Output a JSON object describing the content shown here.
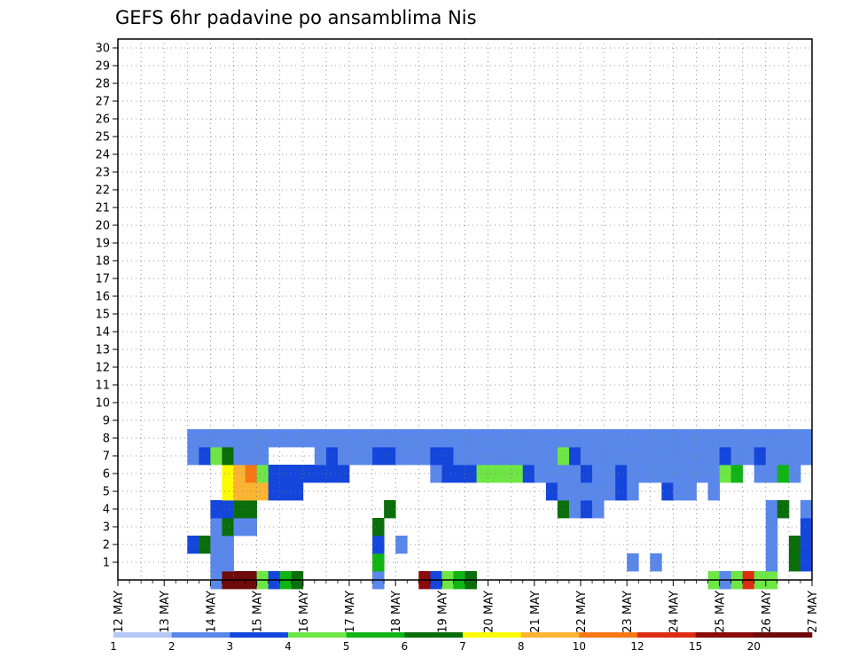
{
  "chart_data": {
    "type": "heatmap",
    "title": "GEFS 6hr padavine po ansamblima Nis",
    "xlabel": "",
    "ylabel": "",
    "x_ticks": [
      "12 MAY",
      "13 MAY",
      "14 MAY",
      "15 MAY",
      "16 MAY",
      "17 MAY",
      "18 MAY",
      "19 MAY",
      "20 MAY",
      "21 MAY",
      "22 MAY",
      "23 MAY",
      "24 MAY",
      "25 MAY",
      "26 MAY",
      "27 MAY"
    ],
    "y_ticks": [
      1,
      2,
      3,
      4,
      5,
      6,
      7,
      8,
      9,
      10,
      11,
      12,
      13,
      14,
      15,
      16,
      17,
      18,
      19,
      20,
      21,
      22,
      23,
      24,
      25,
      26,
      27,
      28,
      29,
      30
    ],
    "ylim": [
      0,
      30
    ],
    "grid": true,
    "x_resolution": "6hr",
    "n_steps": 60,
    "colorbar": {
      "tick_labels": [
        "1",
        "2",
        "3",
        "4",
        "5",
        "6",
        "7",
        "8",
        "10",
        "12",
        "15",
        "20"
      ],
      "colors": [
        "#b4c8f5",
        "#5a87ea",
        "#1446dc",
        "#6ee646",
        "#10b414",
        "#0a6e0a",
        "#fafa00",
        "#fbb432",
        "#f57814",
        "#dc2d14",
        "#8c0a0a",
        "#6e0a0a"
      ]
    },
    "cells": [
      [
        8,
        0,
        1
      ],
      [
        9,
        0,
        11
      ],
      [
        10,
        0,
        11
      ],
      [
        11,
        0,
        11
      ],
      [
        12,
        0,
        3
      ],
      [
        13,
        0,
        2
      ],
      [
        14,
        0,
        4
      ],
      [
        15,
        0,
        5
      ],
      [
        22,
        0,
        1
      ],
      [
        26,
        0,
        10
      ],
      [
        27,
        0,
        2
      ],
      [
        28,
        0,
        3
      ],
      [
        29,
        0,
        4
      ],
      [
        30,
        0,
        5
      ],
      [
        51,
        0,
        3
      ],
      [
        52,
        0,
        1
      ],
      [
        53,
        0,
        3
      ],
      [
        54,
        0,
        9
      ],
      [
        55,
        0,
        3
      ],
      [
        56,
        0,
        3
      ],
      [
        8,
        1,
        1
      ],
      [
        9,
        1,
        1
      ],
      [
        22,
        1,
        4
      ],
      [
        44,
        1,
        1
      ],
      [
        46,
        1,
        1
      ],
      [
        56,
        1,
        1
      ],
      [
        58,
        1,
        5
      ],
      [
        59,
        1,
        2
      ],
      [
        6,
        2,
        2
      ],
      [
        7,
        2,
        5
      ],
      [
        8,
        2,
        1
      ],
      [
        9,
        2,
        1
      ],
      [
        22,
        2,
        2
      ],
      [
        24,
        2,
        1
      ],
      [
        56,
        2,
        1
      ],
      [
        58,
        2,
        5
      ],
      [
        59,
        2,
        2
      ],
      [
        8,
        3,
        1
      ],
      [
        9,
        3,
        5
      ],
      [
        10,
        3,
        1
      ],
      [
        11,
        3,
        1
      ],
      [
        22,
        3,
        5
      ],
      [
        56,
        3,
        1
      ],
      [
        59,
        3,
        2
      ],
      [
        8,
        4,
        2
      ],
      [
        9,
        4,
        2
      ],
      [
        10,
        4,
        5
      ],
      [
        11,
        4,
        5
      ],
      [
        23,
        4,
        5
      ],
      [
        38,
        4,
        5
      ],
      [
        39,
        4,
        1
      ],
      [
        40,
        4,
        2
      ],
      [
        41,
        4,
        1
      ],
      [
        56,
        4,
        1
      ],
      [
        57,
        4,
        5
      ],
      [
        59,
        4,
        1
      ],
      [
        9,
        5,
        6
      ],
      [
        10,
        5,
        7
      ],
      [
        11,
        5,
        7
      ],
      [
        12,
        5,
        7
      ],
      [
        13,
        5,
        2
      ],
      [
        14,
        5,
        2
      ],
      [
        15,
        5,
        2
      ],
      [
        37,
        5,
        2
      ],
      [
        38,
        5,
        1
      ],
      [
        39,
        5,
        1
      ],
      [
        40,
        5,
        1
      ],
      [
        41,
        5,
        1
      ],
      [
        42,
        5,
        1
      ],
      [
        43,
        5,
        2
      ],
      [
        44,
        5,
        1
      ],
      [
        47,
        5,
        2
      ],
      [
        48,
        5,
        1
      ],
      [
        49,
        5,
        1
      ],
      [
        51,
        5,
        1
      ],
      [
        9,
        6,
        6
      ],
      [
        10,
        6,
        7
      ],
      [
        11,
        6,
        8
      ],
      [
        12,
        6,
        3
      ],
      [
        13,
        6,
        2
      ],
      [
        14,
        6,
        2
      ],
      [
        15,
        6,
        2
      ],
      [
        16,
        6,
        2
      ],
      [
        17,
        6,
        2
      ],
      [
        18,
        6,
        2
      ],
      [
        19,
        6,
        2
      ],
      [
        27,
        6,
        1
      ],
      [
        28,
        6,
        2
      ],
      [
        29,
        6,
        2
      ],
      [
        30,
        6,
        2
      ],
      [
        31,
        6,
        3
      ],
      [
        32,
        6,
        3
      ],
      [
        33,
        6,
        3
      ],
      [
        34,
        6,
        3
      ],
      [
        35,
        6,
        2
      ],
      [
        36,
        6,
        1
      ],
      [
        37,
        6,
        1
      ],
      [
        38,
        6,
        1
      ],
      [
        39,
        6,
        1
      ],
      [
        40,
        6,
        2
      ],
      [
        41,
        6,
        1
      ],
      [
        42,
        6,
        1
      ],
      [
        43,
        6,
        2
      ],
      [
        44,
        6,
        1
      ],
      [
        45,
        6,
        1
      ],
      [
        46,
        6,
        1
      ],
      [
        47,
        6,
        1
      ],
      [
        48,
        6,
        1
      ],
      [
        49,
        6,
        1
      ],
      [
        50,
        6,
        1
      ],
      [
        51,
        6,
        1
      ],
      [
        52,
        6,
        3
      ],
      [
        53,
        6,
        4
      ],
      [
        55,
        6,
        1
      ],
      [
        56,
        6,
        1
      ],
      [
        57,
        6,
        4
      ],
      [
        58,
        6,
        1
      ],
      [
        6,
        7,
        1
      ],
      [
        7,
        7,
        2
      ],
      [
        8,
        7,
        3
      ],
      [
        9,
        7,
        5
      ],
      [
        10,
        7,
        1
      ],
      [
        11,
        7,
        1
      ],
      [
        12,
        7,
        1
      ],
      [
        17,
        7,
        1
      ],
      [
        18,
        7,
        2
      ],
      [
        19,
        7,
        1
      ],
      [
        20,
        7,
        1
      ],
      [
        21,
        7,
        1
      ],
      [
        22,
        7,
        2
      ],
      [
        23,
        7,
        2
      ],
      [
        24,
        7,
        1
      ],
      [
        25,
        7,
        1
      ],
      [
        26,
        7,
        1
      ],
      [
        27,
        7,
        2
      ],
      [
        28,
        7,
        2
      ],
      [
        29,
        7,
        1
      ],
      [
        30,
        7,
        1
      ],
      [
        31,
        7,
        1
      ],
      [
        32,
        7,
        1
      ],
      [
        33,
        7,
        1
      ],
      [
        34,
        7,
        1
      ],
      [
        35,
        7,
        1
      ],
      [
        36,
        7,
        1
      ],
      [
        37,
        7,
        1
      ],
      [
        38,
        7,
        3
      ],
      [
        39,
        7,
        2
      ],
      [
        40,
        7,
        1
      ],
      [
        41,
        7,
        1
      ],
      [
        42,
        7,
        1
      ],
      [
        43,
        7,
        1
      ],
      [
        44,
        7,
        1
      ],
      [
        45,
        7,
        1
      ],
      [
        46,
        7,
        1
      ],
      [
        47,
        7,
        1
      ],
      [
        48,
        7,
        1
      ],
      [
        49,
        7,
        1
      ],
      [
        50,
        7,
        1
      ],
      [
        51,
        7,
        1
      ],
      [
        52,
        7,
        2
      ],
      [
        53,
        7,
        1
      ],
      [
        54,
        7,
        1
      ],
      [
        55,
        7,
        2
      ],
      [
        56,
        7,
        1
      ],
      [
        57,
        7,
        1
      ],
      [
        58,
        7,
        1
      ],
      [
        59,
        7,
        1
      ],
      [
        6,
        8,
        1
      ],
      [
        7,
        8,
        1
      ],
      [
        8,
        8,
        1
      ],
      [
        9,
        8,
        1
      ],
      [
        10,
        8,
        1
      ],
      [
        11,
        8,
        1
      ],
      [
        12,
        8,
        1
      ],
      [
        13,
        8,
        1
      ],
      [
        14,
        8,
        1
      ],
      [
        15,
        8,
        1
      ],
      [
        16,
        8,
        1
      ],
      [
        17,
        8,
        1
      ],
      [
        18,
        8,
        1
      ],
      [
        19,
        8,
        1
      ],
      [
        20,
        8,
        1
      ],
      [
        21,
        8,
        1
      ],
      [
        22,
        8,
        1
      ],
      [
        23,
        8,
        1
      ],
      [
        24,
        8,
        1
      ],
      [
        25,
        8,
        1
      ],
      [
        26,
        8,
        1
      ],
      [
        27,
        8,
        1
      ],
      [
        28,
        8,
        1
      ],
      [
        29,
        8,
        1
      ],
      [
        30,
        8,
        1
      ],
      [
        31,
        8,
        1
      ],
      [
        32,
        8,
        1
      ],
      [
        33,
        8,
        1
      ],
      [
        34,
        8,
        1
      ],
      [
        35,
        8,
        1
      ],
      [
        36,
        8,
        1
      ],
      [
        37,
        8,
        1
      ],
      [
        38,
        8,
        1
      ],
      [
        39,
        8,
        1
      ],
      [
        40,
        8,
        1
      ],
      [
        41,
        8,
        1
      ],
      [
        42,
        8,
        1
      ],
      [
        43,
        8,
        1
      ],
      [
        44,
        8,
        1
      ],
      [
        45,
        8,
        1
      ],
      [
        46,
        8,
        1
      ],
      [
        47,
        8,
        1
      ],
      [
        48,
        8,
        1
      ],
      [
        49,
        8,
        1
      ],
      [
        50,
        8,
        1
      ],
      [
        51,
        8,
        1
      ],
      [
        52,
        8,
        1
      ],
      [
        53,
        8,
        1
      ],
      [
        54,
        8,
        1
      ],
      [
        55,
        8,
        1
      ],
      [
        56,
        8,
        1
      ],
      [
        57,
        8,
        1
      ],
      [
        58,
        8,
        1
      ],
      [
        59,
        8,
        1
      ]
    ]
  }
}
